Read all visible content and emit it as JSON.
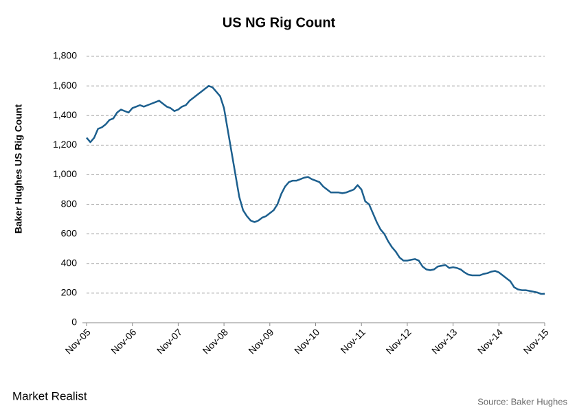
{
  "chart_data": {
    "type": "line",
    "title": "US NG Rig Count",
    "y_label": "Baker Hughes US Rig Count",
    "source": "Source: Baker Hughes",
    "brand": "Market Realist",
    "categories": [
      "Nov-05",
      null,
      null,
      null,
      null,
      null,
      null,
      null,
      null,
      null,
      null,
      null,
      "Nov-06",
      null,
      null,
      null,
      null,
      null,
      null,
      null,
      null,
      null,
      null,
      null,
      "Nov-07",
      null,
      null,
      null,
      null,
      null,
      null,
      null,
      null,
      null,
      null,
      null,
      "Nov-08",
      null,
      null,
      null,
      null,
      null,
      null,
      null,
      null,
      null,
      null,
      null,
      "Nov-09",
      null,
      null,
      null,
      null,
      null,
      null,
      null,
      null,
      null,
      null,
      null,
      "Nov-10",
      null,
      null,
      null,
      null,
      null,
      null,
      null,
      null,
      null,
      null,
      null,
      "Nov-11",
      null,
      null,
      null,
      null,
      null,
      null,
      null,
      null,
      null,
      null,
      null,
      "Nov-12",
      null,
      null,
      null,
      null,
      null,
      null,
      null,
      null,
      null,
      null,
      null,
      "Nov-13",
      null,
      null,
      null,
      null,
      null,
      null,
      null,
      null,
      null,
      null,
      null,
      "Nov-14",
      null,
      null,
      null,
      null,
      null,
      null,
      null,
      null,
      null,
      null,
      null,
      "Nov-15"
    ],
    "values": [
      1250,
      1220,
      1250,
      1310,
      1320,
      1340,
      1370,
      1380,
      1420,
      1440,
      1430,
      1420,
      1450,
      1460,
      1470,
      1460,
      1470,
      1480,
      1490,
      1500,
      1480,
      1460,
      1450,
      1430,
      1440,
      1460,
      1470,
      1500,
      1520,
      1540,
      1560,
      1580,
      1600,
      1590,
      1560,
      1530,
      1450,
      1300,
      1150,
      1000,
      850,
      760,
      720,
      690,
      680,
      690,
      710,
      720,
      740,
      760,
      800,
      870,
      920,
      950,
      960,
      960,
      970,
      980,
      985,
      970,
      960,
      950,
      920,
      900,
      880,
      880,
      880,
      875,
      880,
      890,
      900,
      930,
      900,
      820,
      800,
      740,
      680,
      630,
      600,
      550,
      510,
      480,
      440,
      420,
      420,
      425,
      430,
      420,
      380,
      360,
      355,
      360,
      380,
      385,
      390,
      370,
      375,
      370,
      360,
      340,
      325,
      320,
      320,
      320,
      330,
      335,
      345,
      350,
      340,
      320,
      300,
      280,
      240,
      225,
      220,
      220,
      215,
      210,
      205,
      195,
      195
    ],
    "color": "#1c5f8e",
    "ylim": [
      0,
      1800
    ],
    "yticks": [
      0,
      200,
      400,
      600,
      800,
      {
        "value": 1000,
        "label": "1,000"
      },
      {
        "value": 1200,
        "label": "1,200"
      },
      {
        "value": 1400,
        "label": "1,400"
      },
      {
        "value": 1600,
        "label": "1,600"
      },
      {
        "value": 1800,
        "label": "1,800"
      }
    ],
    "grid": true
  }
}
